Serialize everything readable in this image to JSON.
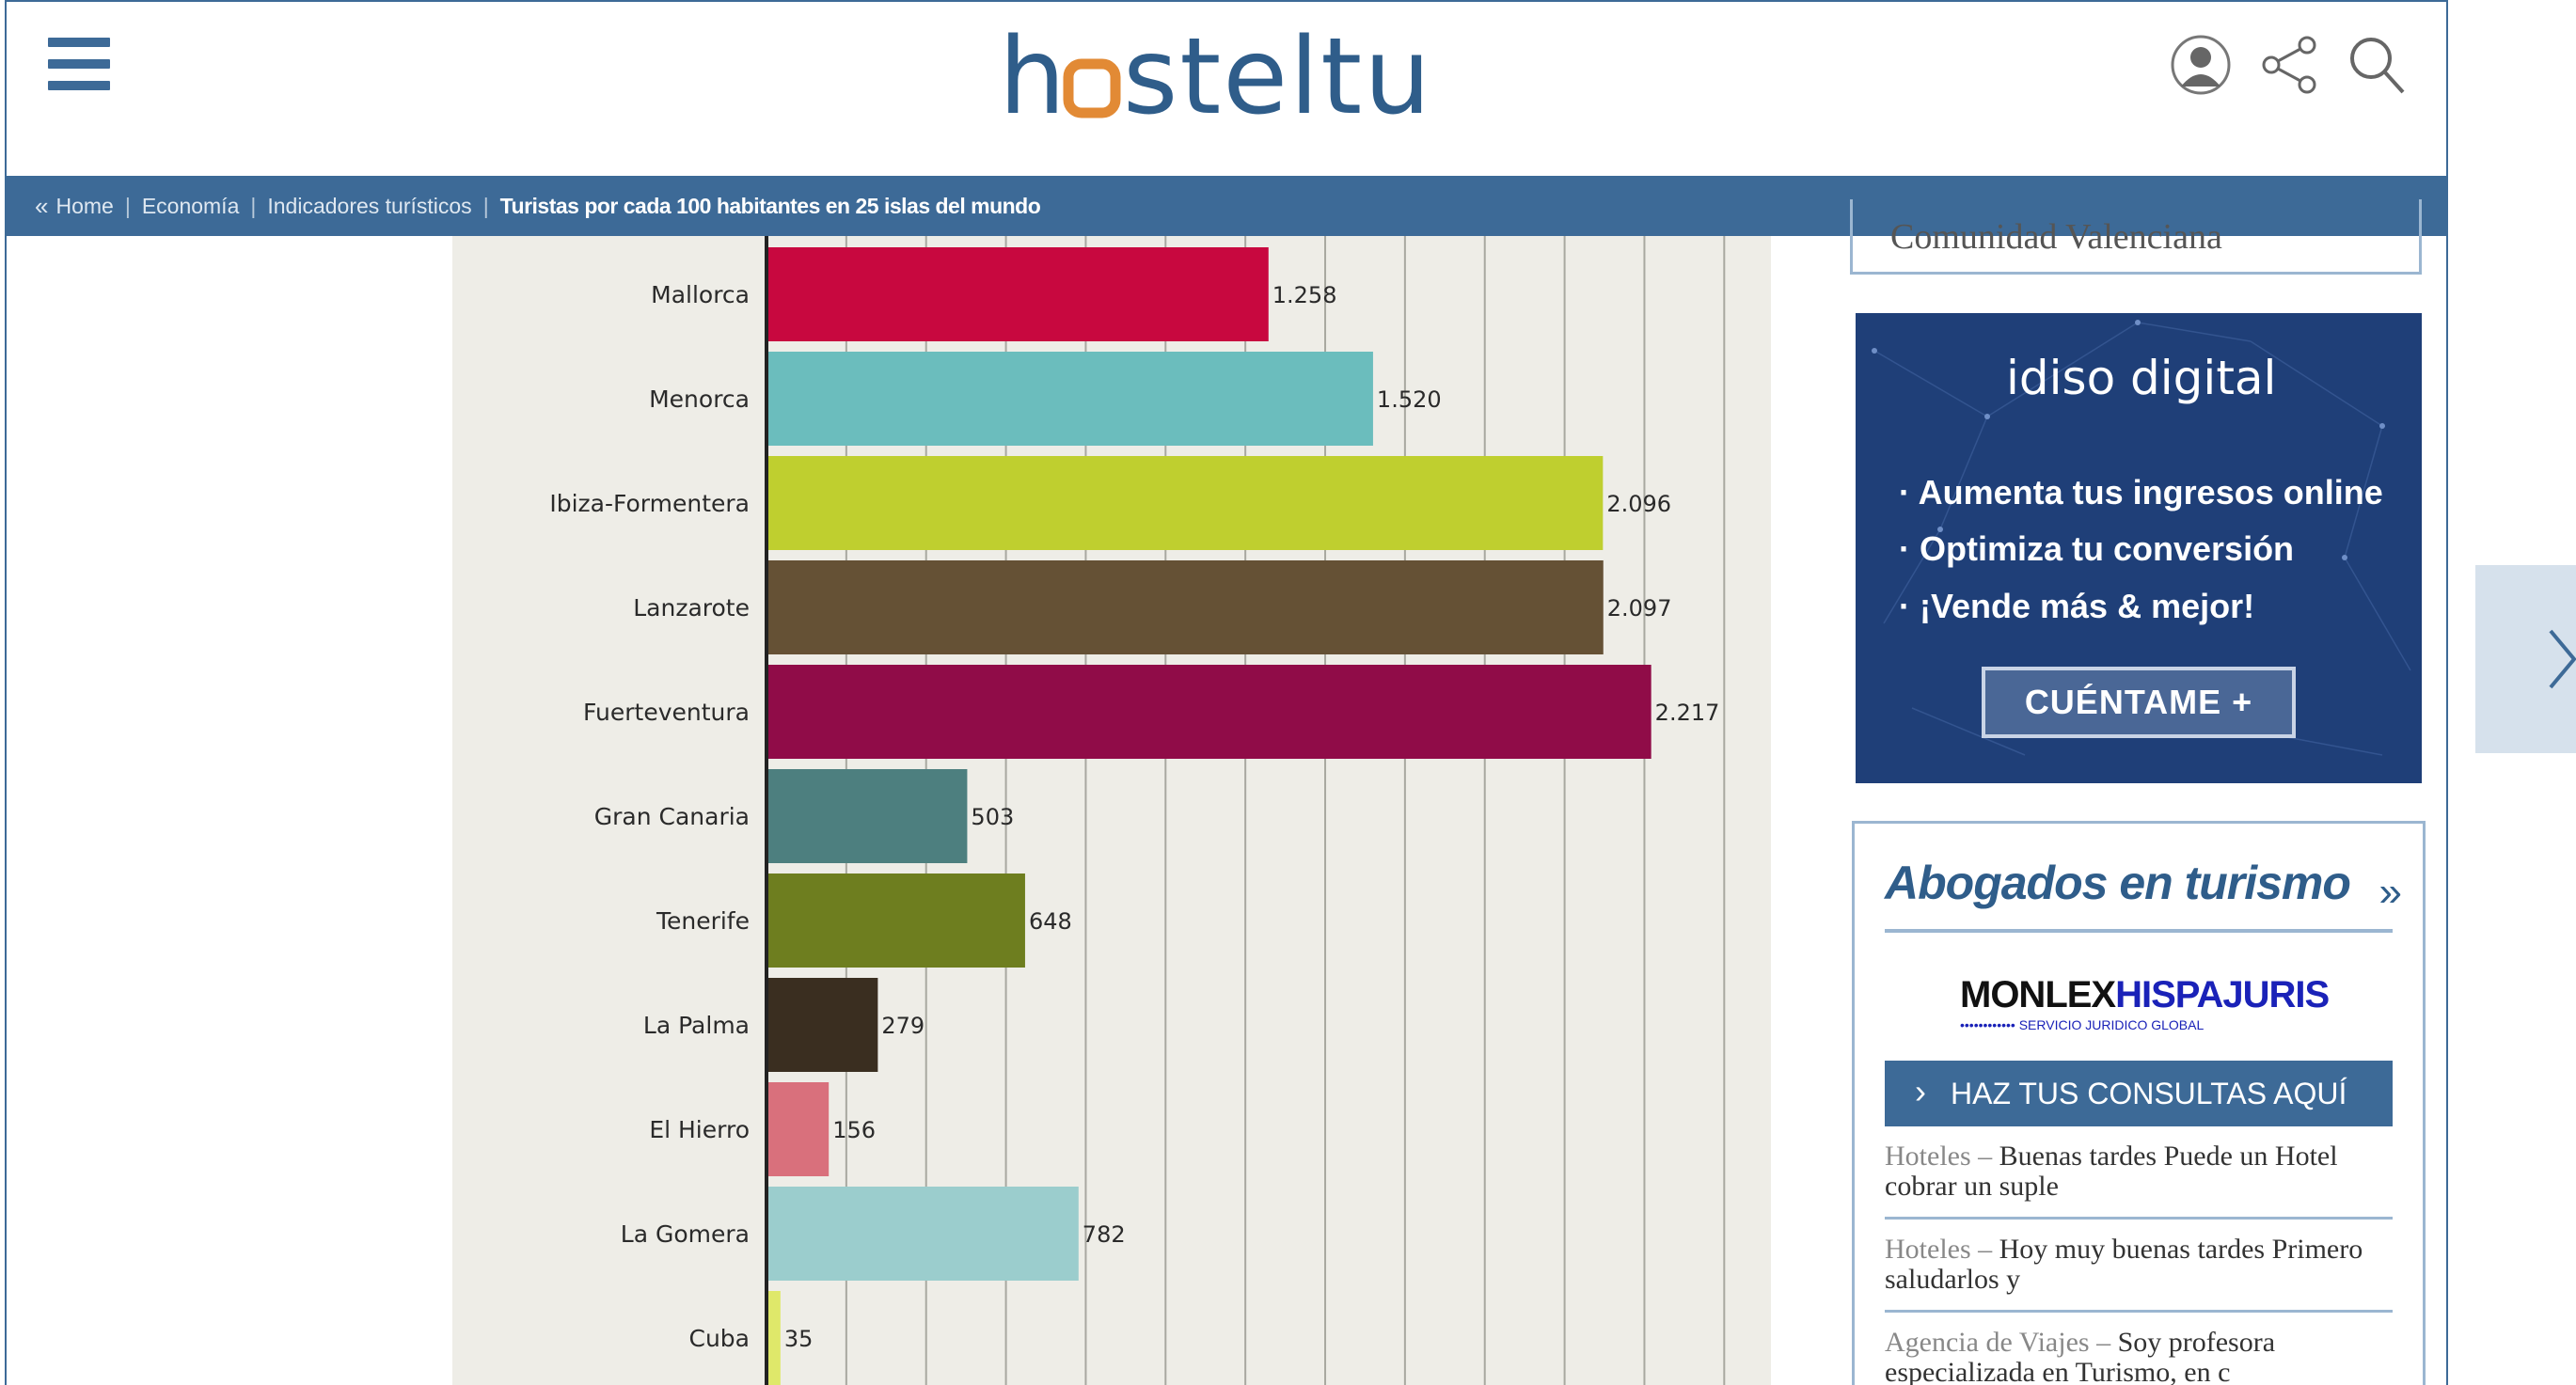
{
  "header": {
    "logo": "hosteltur",
    "icons": [
      "user-icon",
      "share-icon",
      "search-icon"
    ]
  },
  "breadcrumb": {
    "items": [
      "Home",
      "Economía",
      "Indicadores turísticos"
    ],
    "current": "Turistas por cada 100 habitantes en 25 islas del mundo"
  },
  "chart_data": {
    "type": "bar",
    "orientation": "horizontal",
    "categories": [
      "Mallorca",
      "Menorca",
      "Ibiza-Formentera",
      "Lanzarote",
      "Fuerteventura",
      "Gran Canaria",
      "Tenerife",
      "La Palma",
      "El Hierro",
      "La Gomera",
      "Cuba"
    ],
    "values": [
      1258,
      1520,
      2096,
      2097,
      2217,
      503,
      648,
      279,
      156,
      782,
      35
    ],
    "value_labels": [
      "1.258",
      "1.520",
      "2.096",
      "2.097",
      "2.217",
      "503",
      "648",
      "279",
      "156",
      "782",
      "35"
    ],
    "colors": [
      "#c8083f",
      "#6bbdbd",
      "#bfcf2f",
      "#655135",
      "#900c48",
      "#4d7f7f",
      "#6e7e1f",
      "#3a2e20",
      "#d9707c",
      "#9bcdcd",
      "#dfe86a"
    ],
    "xlim": [
      0,
      2500
    ],
    "grid": true,
    "background": "#eeede7"
  },
  "sidebar": {
    "top_box_text": "Comunidad Valenciana",
    "ad": {
      "brand": "idiso digital",
      "lines": [
        "· Aumenta tus ingresos online",
        "· Optimiza tu conversión",
        "· ¡Vende más & mejor!"
      ],
      "button": "CUÉNTAME +"
    },
    "abogados": {
      "title": "Abogados en turismo",
      "brand_a": "MONLEX",
      "brand_b": "HISPAJURIS",
      "brand_sub": "•••••••••••• SERVICIO JURIDICO GLOBAL",
      "button": "HAZ TUS CONSULTAS AQUÍ",
      "questions": [
        {
          "cat": "Hoteles",
          "text": "Buenas tardes Puede un Hotel cobrar un suple"
        },
        {
          "cat": "Hoteles",
          "text": "Hoy muy buenas tardes Primero saludarlos y"
        },
        {
          "cat": "Agencia de Viajes",
          "text": "Soy profesora especializada en Turismo, en c"
        }
      ]
    }
  }
}
